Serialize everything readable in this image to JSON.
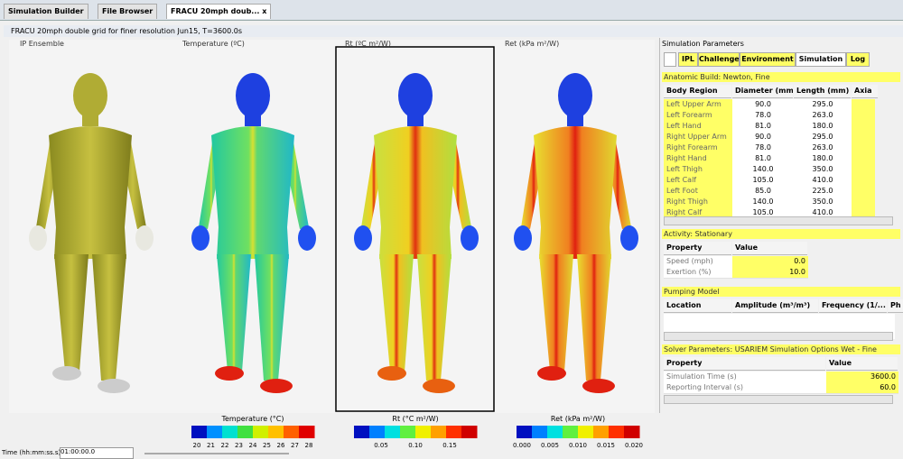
{
  "tabs": [
    "Simulation Builder",
    "File Browser",
    "FRACU 20mph doub..."
  ],
  "tab_close": "x",
  "window_title": "FRACU 20mph double grid for finer resolution Jun15, T=3600.0s",
  "viewports": [
    {
      "label": "IP Ensemble"
    },
    {
      "label": "Temperature (ºC)"
    },
    {
      "label": "Rt (ºC m²/W)"
    },
    {
      "label": "Ret (kPa m²/W)"
    }
  ],
  "legends": [
    {
      "title": "Temperature (°C)",
      "ticks": [
        "20",
        "21",
        "22",
        "23",
        "24",
        "25",
        "26",
        "27",
        "28"
      ]
    },
    {
      "title": "Rt (°C m²/W)",
      "ticks": [
        "0.05",
        "0.10",
        "0.15"
      ]
    },
    {
      "title": "Ret (kPa m²/W)",
      "ticks": [
        "0.000",
        "0.005",
        "0.010",
        "0.015",
        "0.020"
      ]
    }
  ],
  "time": {
    "label": "Time (hh:mm:ss.s)",
    "value": "01:00:00.0"
  },
  "params": {
    "title": "Simulation Parameters",
    "tabs": [
      "IPL",
      "Challenge",
      "Environment",
      "Simulation",
      "Log"
    ],
    "anatomic": {
      "heading": "Anatomic Build: Newton, Fine",
      "columns": [
        "Body Region",
        "Diameter (mm)",
        "Length (mm)",
        "Axia"
      ],
      "rows": [
        [
          "Left Upper Arm",
          "90.0",
          "295.0"
        ],
        [
          "Left Forearm",
          "78.0",
          "263.0"
        ],
        [
          "Left Hand",
          "81.0",
          "180.0"
        ],
        [
          "Right Upper Arm",
          "90.0",
          "295.0"
        ],
        [
          "Right Forearm",
          "78.0",
          "263.0"
        ],
        [
          "Right Hand",
          "81.0",
          "180.0"
        ],
        [
          "Left Thigh",
          "140.0",
          "350.0"
        ],
        [
          "Left Calf",
          "105.0",
          "410.0"
        ],
        [
          "Left Foot",
          "85.0",
          "225.0"
        ],
        [
          "Right Thigh",
          "140.0",
          "350.0"
        ],
        [
          "Right Calf",
          "105.0",
          "410.0"
        ]
      ]
    },
    "activity": {
      "heading": "Activity: Stationary",
      "columns": [
        "Property",
        "Value"
      ],
      "rows": [
        [
          "Speed (mph)",
          "0.0"
        ],
        [
          "Exertion (%)",
          "10.0"
        ]
      ]
    },
    "pumping": {
      "heading": "Pumping Model",
      "columns": [
        "Location",
        "Amplitude (m³/m³)",
        "Frequency (1/...",
        "Ph"
      ]
    },
    "solver": {
      "heading": "Solver Parameters: USARIEM Simulation Options Wet - Fine",
      "columns": [
        "Property",
        "Value"
      ],
      "rows": [
        [
          "Simulation Time (s)",
          "3600.0"
        ],
        [
          "Reporting Interval (s)",
          "60.0"
        ]
      ]
    }
  }
}
